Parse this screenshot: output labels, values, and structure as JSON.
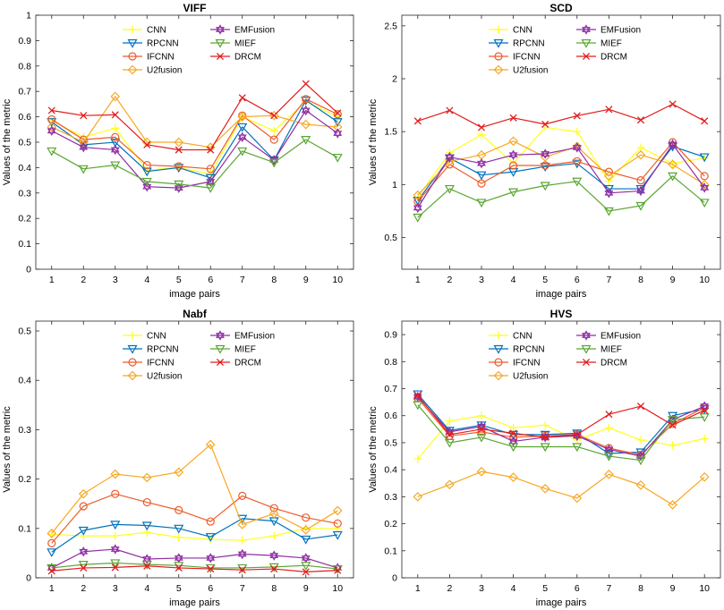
{
  "figure": {
    "description_none": ""
  },
  "chart_data": [
    {
      "type": "line",
      "title": "VIFF",
      "xlabel": "image pairs",
      "ylabel": "Values of the metric",
      "x": [
        1,
        2,
        3,
        4,
        5,
        6,
        7,
        8,
        9,
        10
      ],
      "xticks": [
        "1",
        "2",
        "3",
        "4",
        "5",
        "6",
        "7",
        "8",
        "9",
        "10"
      ],
      "ylim": [
        0,
        1
      ],
      "yticks": [
        "0",
        "0.1",
        "0.2",
        "0.3",
        "0.4",
        "0.5",
        "0.6",
        "0.7",
        "0.8",
        "0.9",
        "1"
      ],
      "yticks_values": [
        0,
        0.1,
        0.2,
        0.3,
        0.4,
        0.5,
        0.6,
        0.7,
        0.8,
        0.9,
        1
      ],
      "series": [
        {
          "name": "CNN",
          "color": "#ffff1a",
          "marker": "plus",
          "values": [
            0.585,
            0.52,
            0.555,
            0.39,
            0.4,
            0.375,
            0.6,
            0.545,
            0.66,
            0.6
          ]
        },
        {
          "name": "RPCNN",
          "color": "#0072bd",
          "marker": "triangle-down",
          "values": [
            0.58,
            0.49,
            0.5,
            0.385,
            0.4,
            0.36,
            0.56,
            0.43,
            0.665,
            0.58
          ]
        },
        {
          "name": "IFCNN",
          "color": "#ed5c2b",
          "marker": "circle",
          "values": [
            0.59,
            0.51,
            0.52,
            0.41,
            0.405,
            0.395,
            0.605,
            0.51,
            0.67,
            0.61
          ]
        },
        {
          "name": "U2fusion",
          "color": "#f7a823",
          "marker": "diamond",
          "values": [
            0.56,
            0.5,
            0.68,
            0.5,
            0.5,
            0.48,
            0.6,
            0.605,
            0.57,
            0.56
          ]
        },
        {
          "name": "EMFusion",
          "color": "#8f2ca3",
          "marker": "hexagram",
          "values": [
            0.545,
            0.48,
            0.47,
            0.325,
            0.32,
            0.345,
            0.52,
            0.43,
            0.625,
            0.535
          ]
        },
        {
          "name": "MIEF",
          "color": "#5aa633",
          "marker": "triangle-down",
          "values": [
            0.465,
            0.395,
            0.41,
            0.345,
            0.335,
            0.32,
            0.465,
            0.42,
            0.51,
            0.44
          ]
        },
        {
          "name": "DRCM",
          "color": "#e21c1c",
          "marker": "x",
          "values": [
            0.625,
            0.605,
            0.608,
            0.49,
            0.47,
            0.47,
            0.675,
            0.605,
            0.73,
            0.615
          ]
        }
      ]
    },
    {
      "type": "line",
      "title": "SCD",
      "xlabel": "image pairs",
      "ylabel": "Values of the metric",
      "x": [
        1,
        2,
        3,
        4,
        5,
        6,
        7,
        8,
        9,
        10
      ],
      "xticks": [
        "1",
        "2",
        "3",
        "4",
        "5",
        "6",
        "7",
        "8",
        "9",
        "10"
      ],
      "ylim": [
        0.2,
        2.6
      ],
      "yticks": [
        "0.5",
        "1",
        "1.5",
        "2",
        "2.5"
      ],
      "yticks_values": [
        0.5,
        1,
        1.5,
        2,
        2.5
      ],
      "series": [
        {
          "name": "CNN",
          "color": "#ffff1a",
          "marker": "plus",
          "values": [
            0.88,
            1.3,
            1.47,
            1.2,
            1.54,
            1.5,
            1.03,
            1.35,
            1.2,
            1.25
          ]
        },
        {
          "name": "RPCNN",
          "color": "#0072bd",
          "marker": "triangle-down",
          "values": [
            0.85,
            1.25,
            1.09,
            1.12,
            1.17,
            1.2,
            0.96,
            0.96,
            1.36,
            1.26
          ]
        },
        {
          "name": "IFCNN",
          "color": "#ed5c2b",
          "marker": "circle",
          "values": [
            0.84,
            1.19,
            1.01,
            1.18,
            1.18,
            1.22,
            1.12,
            1.04,
            1.4,
            1.08
          ]
        },
        {
          "name": "U2fusion",
          "color": "#f7a823",
          "marker": "diamond",
          "values": [
            0.9,
            1.22,
            1.28,
            1.41,
            1.26,
            1.36,
            1.08,
            1.28,
            1.19,
            1.0
          ]
        },
        {
          "name": "EMFusion",
          "color": "#8f2ca3",
          "marker": "hexagram",
          "values": [
            0.78,
            1.26,
            1.2,
            1.28,
            1.29,
            1.35,
            0.92,
            0.94,
            1.38,
            0.97
          ]
        },
        {
          "name": "MIEF",
          "color": "#5aa633",
          "marker": "triangle-down",
          "values": [
            0.69,
            0.96,
            0.83,
            0.93,
            0.99,
            1.03,
            0.75,
            0.8,
            1.08,
            0.83
          ]
        },
        {
          "name": "DRCM",
          "color": "#e21c1c",
          "marker": "x",
          "values": [
            1.6,
            1.7,
            1.54,
            1.63,
            1.57,
            1.65,
            1.71,
            1.61,
            1.76,
            1.6
          ]
        }
      ]
    },
    {
      "type": "line",
      "title": "Nabf",
      "xlabel": "image pairs",
      "ylabel": "Values of the metric",
      "x": [
        1,
        2,
        3,
        4,
        5,
        6,
        7,
        8,
        9,
        10
      ],
      "xticks": [
        "1",
        "2",
        "3",
        "4",
        "5",
        "6",
        "7",
        "8",
        "9",
        "10"
      ],
      "ylim": [
        0,
        0.52
      ],
      "yticks": [
        "0",
        "0.1",
        "0.2",
        "0.3",
        "0.4",
        "0.5"
      ],
      "yticks_values": [
        0,
        0.1,
        0.2,
        0.3,
        0.4,
        0.5
      ],
      "series": [
        {
          "name": "CNN",
          "color": "#ffff1a",
          "marker": "plus",
          "values": [
            0.088,
            0.085,
            0.085,
            0.092,
            0.082,
            0.078,
            0.076,
            0.085,
            0.1,
            0.1
          ]
        },
        {
          "name": "RPCNN",
          "color": "#0072bd",
          "marker": "triangle-down",
          "values": [
            0.052,
            0.096,
            0.108,
            0.106,
            0.1,
            0.083,
            0.12,
            0.115,
            0.078,
            0.087
          ]
        },
        {
          "name": "IFCNN",
          "color": "#ed5c2b",
          "marker": "circle",
          "values": [
            0.07,
            0.145,
            0.17,
            0.153,
            0.137,
            0.114,
            0.166,
            0.141,
            0.122,
            0.11
          ]
        },
        {
          "name": "U2fusion",
          "color": "#f7a823",
          "marker": "diamond",
          "values": [
            0.09,
            0.17,
            0.21,
            0.203,
            0.214,
            0.27,
            0.108,
            0.13,
            0.097,
            0.136
          ]
        },
        {
          "name": "EMFusion",
          "color": "#8f2ca3",
          "marker": "hexagram",
          "values": [
            0.02,
            0.053,
            0.058,
            0.038,
            0.04,
            0.04,
            0.048,
            0.045,
            0.04,
            0.02
          ]
        },
        {
          "name": "MIEF",
          "color": "#5aa633",
          "marker": "triangle-down",
          "values": [
            0.02,
            0.027,
            0.03,
            0.027,
            0.025,
            0.02,
            0.02,
            0.022,
            0.025,
            0.018
          ]
        },
        {
          "name": "DRCM",
          "color": "#e21c1c",
          "marker": "x",
          "values": [
            0.014,
            0.02,
            0.021,
            0.024,
            0.02,
            0.018,
            0.016,
            0.018,
            0.012,
            0.015
          ]
        }
      ]
    },
    {
      "type": "line",
      "title": "HVS",
      "xlabel": "image pairs",
      "ylabel": "Values of the metric",
      "x": [
        1,
        2,
        3,
        4,
        5,
        6,
        7,
        8,
        9,
        10
      ],
      "xticks": [
        "1",
        "2",
        "3",
        "4",
        "5",
        "6",
        "7",
        "8",
        "9",
        "10"
      ],
      "ylim": [
        0,
        0.95
      ],
      "yticks": [
        "0",
        "0.1",
        "0.2",
        "0.3",
        "0.4",
        "0.5",
        "0.6",
        "0.7",
        "0.8",
        "0.9"
      ],
      "yticks_values": [
        0,
        0.1,
        0.2,
        0.3,
        0.4,
        0.5,
        0.6,
        0.7,
        0.8,
        0.9
      ],
      "series": [
        {
          "name": "CNN",
          "color": "#ffff1a",
          "marker": "plus",
          "values": [
            0.44,
            0.58,
            0.6,
            0.555,
            0.565,
            0.51,
            0.555,
            0.51,
            0.49,
            0.515
          ]
        },
        {
          "name": "RPCNN",
          "color": "#0072bd",
          "marker": "triangle-down",
          "values": [
            0.68,
            0.545,
            0.565,
            0.53,
            0.53,
            0.535,
            0.46,
            0.465,
            0.6,
            0.625
          ]
        },
        {
          "name": "IFCNN",
          "color": "#ed5c2b",
          "marker": "circle",
          "values": [
            0.665,
            0.525,
            0.54,
            0.52,
            0.525,
            0.53,
            0.48,
            0.455,
            0.57,
            0.63
          ]
        },
        {
          "name": "U2fusion",
          "color": "#f7a823",
          "marker": "diamond",
          "values": [
            0.3,
            0.345,
            0.393,
            0.372,
            0.33,
            0.295,
            0.383,
            0.343,
            0.27,
            0.373
          ]
        },
        {
          "name": "EMFusion",
          "color": "#8f2ca3",
          "marker": "hexagram",
          "values": [
            0.67,
            0.54,
            0.56,
            0.505,
            0.52,
            0.525,
            0.475,
            0.45,
            0.585,
            0.635
          ]
        },
        {
          "name": "MIEF",
          "color": "#5aa633",
          "marker": "triangle-down",
          "values": [
            0.64,
            0.5,
            0.52,
            0.485,
            0.485,
            0.485,
            0.45,
            0.435,
            0.585,
            0.595
          ]
        },
        {
          "name": "DRCM",
          "color": "#e21c1c",
          "marker": "x",
          "values": [
            0.675,
            0.53,
            0.55,
            0.535,
            0.52,
            0.53,
            0.605,
            0.635,
            0.565,
            0.62
          ]
        }
      ]
    }
  ]
}
